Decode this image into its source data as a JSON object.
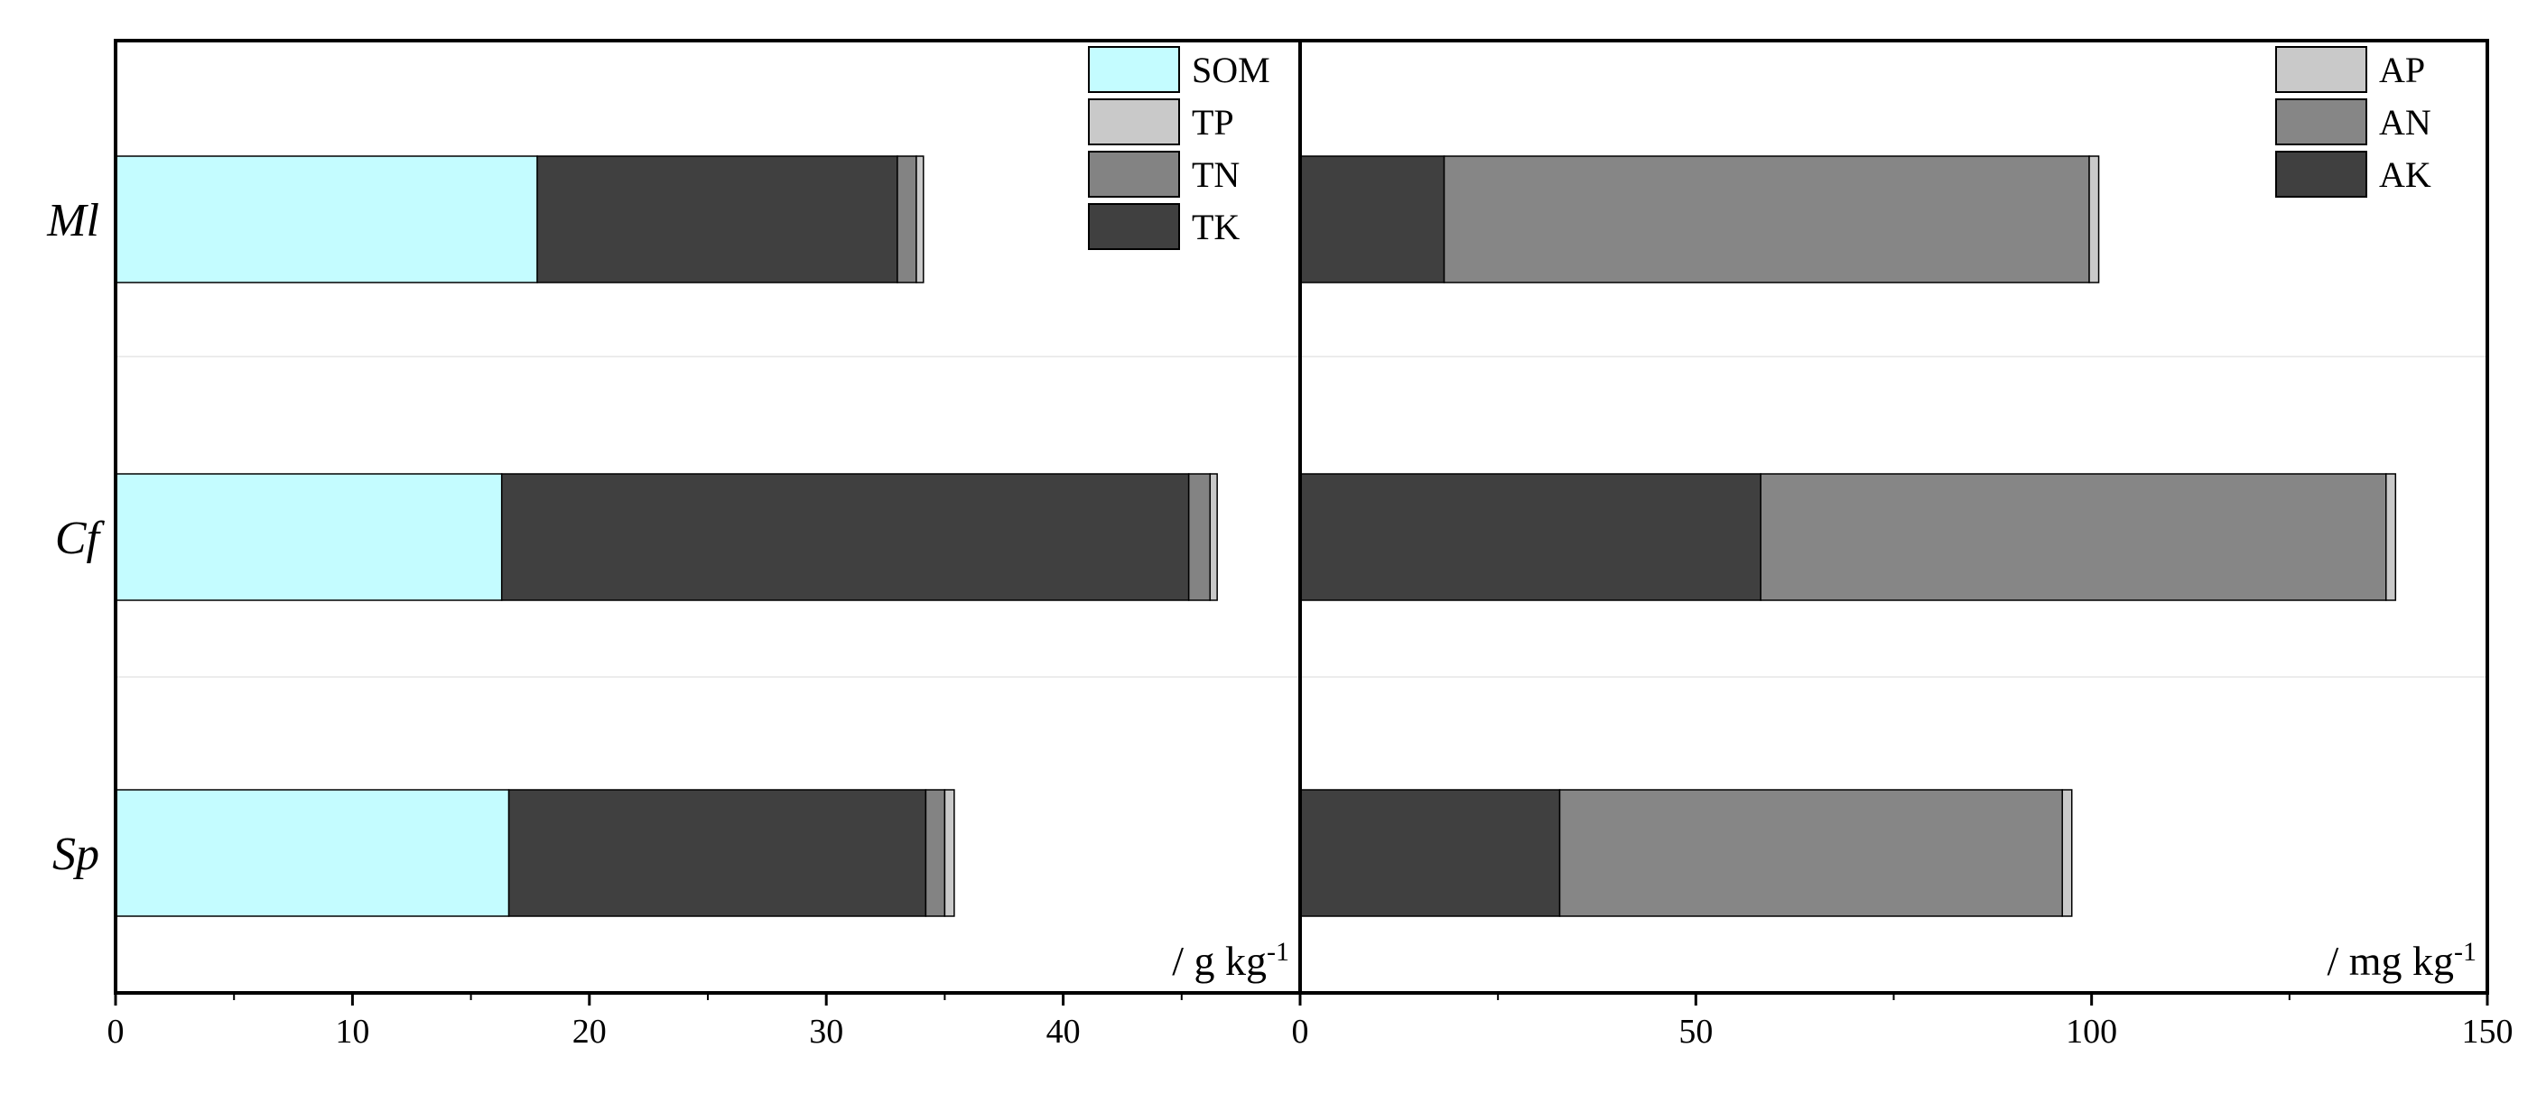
{
  "chart_data": [
    {
      "type": "bar",
      "orientation": "horizontal",
      "stacked": true,
      "categories": [
        "Ml",
        "Cf",
        "Sp"
      ],
      "series": [
        {
          "name": "SOM",
          "values": [
            17.8,
            16.3,
            16.6
          ],
          "color": "#c4fcff"
        },
        {
          "name": "TK",
          "values": [
            15.2,
            29.0,
            17.6
          ],
          "color": "#404040"
        },
        {
          "name": "TN",
          "values": [
            0.8,
            0.9,
            0.8
          ],
          "color": "#838383"
        },
        {
          "name": "TP",
          "values": [
            0.3,
            0.3,
            0.4
          ],
          "color": "#c9c9c9"
        }
      ],
      "legend_order": [
        "SOM",
        "TP",
        "TN",
        "TK"
      ],
      "legend_position": "top-right",
      "unit_label": "/ g kg",
      "unit_superscript": "-1",
      "xlim": [
        0,
        50
      ],
      "xticks": [
        "0",
        "10",
        "20",
        "30",
        "40"
      ],
      "grid": "faint horizontal separators"
    },
    {
      "type": "bar",
      "orientation": "horizontal",
      "stacked": true,
      "categories": [
        "Ml",
        "Cf",
        "Sp"
      ],
      "series": [
        {
          "name": "AK",
          "values": [
            18.2,
            58.2,
            32.8
          ],
          "color": "#404040"
        },
        {
          "name": "AN",
          "values": [
            81.5,
            79.0,
            63.5
          ],
          "color": "#868686"
        },
        {
          "name": "AP",
          "values": [
            1.2,
            1.2,
            1.2
          ],
          "color": "#c9c9c9"
        }
      ],
      "legend_order": [
        "AP",
        "AN",
        "AK"
      ],
      "legend_position": "top-right",
      "unit_label": "/ mg kg",
      "unit_superscript": "-1",
      "xlim": [
        0,
        150
      ],
      "xticks": [
        "0",
        "50",
        "100",
        "150"
      ],
      "grid": "faint horizontal separators"
    }
  ]
}
